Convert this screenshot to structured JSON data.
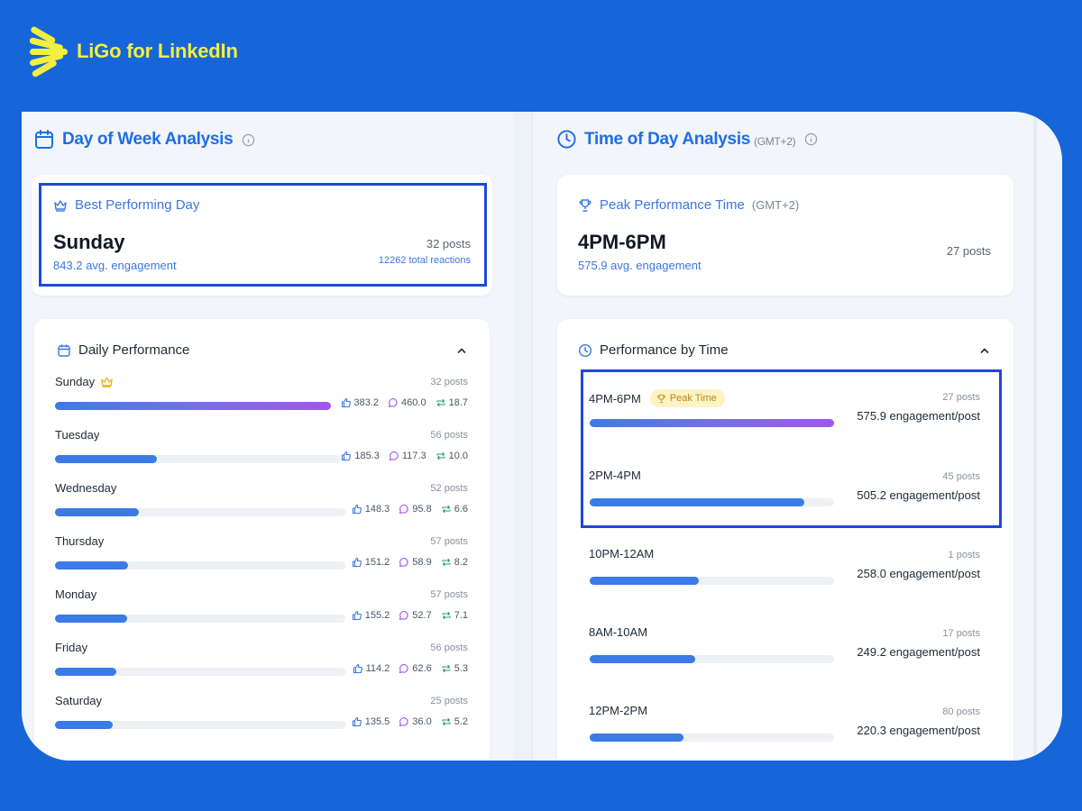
{
  "brand": {
    "name": "LiGo for LinkedIn",
    "color": "#f3ef3e"
  },
  "day_section": {
    "title": "Day of Week Analysis",
    "best": {
      "label": "Best Performing Day",
      "day": "Sunday",
      "avg": "843.2 avg. engagement",
      "posts": "32 posts",
      "reactions": "12262 total reactions"
    },
    "daily": {
      "title": "Daily Performance",
      "rows": [
        {
          "day": "Sunday",
          "posts": "32 posts",
          "likes": "383.2",
          "comments": "460.0",
          "reposts": "18.7",
          "fill": 1.0,
          "best": true
        },
        {
          "day": "Tuesday",
          "posts": "56 posts",
          "likes": "185.3",
          "comments": "117.3",
          "reposts": "10.0",
          "fill": 0.357
        },
        {
          "day": "Wednesday",
          "posts": "52 posts",
          "likes": "148.3",
          "comments": "95.8",
          "reposts": "6.6",
          "fill": 0.29
        },
        {
          "day": "Thursday",
          "posts": "57 posts",
          "likes": "151.2",
          "comments": "58.9",
          "reposts": "8.2",
          "fill": 0.25
        },
        {
          "day": "Monday",
          "posts": "57 posts",
          "likes": "155.2",
          "comments": "52.7",
          "reposts": "7.1",
          "fill": 0.248
        },
        {
          "day": "Friday",
          "posts": "56 posts",
          "likes": "114.2",
          "comments": "62.6",
          "reposts": "5.3",
          "fill": 0.21
        },
        {
          "day": "Saturday",
          "posts": "25 posts",
          "likes": "135.5",
          "comments": "36.0",
          "reposts": "5.2",
          "fill": 0.2
        }
      ]
    }
  },
  "time_section": {
    "title": "Time of Day Analysis",
    "timezone": "(GMT+2)",
    "peak": {
      "label": "Peak Performance Time",
      "timezone": "(GMT+2)",
      "time": "4PM-6PM",
      "avg": "575.9 avg. engagement",
      "posts": "27 posts"
    },
    "by_time": {
      "title": "Performance by Time",
      "badge": "Peak Time",
      "rows": [
        {
          "time": "4PM-6PM",
          "posts": "27 posts",
          "engagement": "575.9 engagement/post",
          "fill": 1.0,
          "peak": true
        },
        {
          "time": "2PM-4PM",
          "posts": "45 posts",
          "engagement": "505.2 engagement/post",
          "fill": 0.877
        },
        {
          "time": "10PM-12AM",
          "posts": "1 posts",
          "engagement": "258.0 engagement/post",
          "fill": 0.448
        },
        {
          "time": "8AM-10AM",
          "posts": "17 posts",
          "engagement": "249.2 engagement/post",
          "fill": 0.433
        },
        {
          "time": "12PM-2PM",
          "posts": "80 posts",
          "engagement": "220.3 engagement/post",
          "fill": 0.383
        }
      ]
    }
  }
}
